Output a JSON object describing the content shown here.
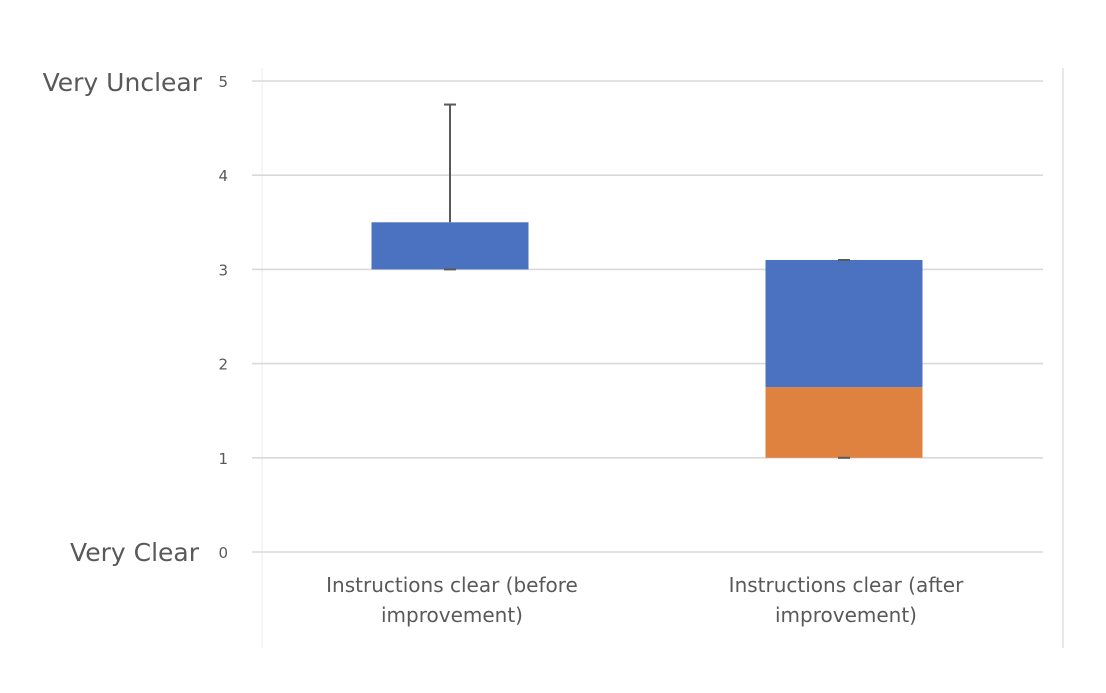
{
  "chart_data": {
    "type": "box",
    "categories": [
      "Instructions clear (before improvement)",
      "Instructions clear (after improvement)"
    ],
    "boxes": [
      {
        "category": "Instructions clear (before improvement)",
        "min": 3,
        "q1": 3,
        "median": 3,
        "q3": 3.5,
        "max": 4.75
      },
      {
        "category": "Instructions clear (after improvement)",
        "min": 1,
        "q1": 1,
        "median": 1.75,
        "q3": 3.1,
        "max": 3.1
      }
    ],
    "ylim": [
      0,
      5
    ],
    "yticks": [
      0,
      1,
      2,
      3,
      4,
      5
    ],
    "scale_labels": {
      "top": "Very Unclear",
      "bottom": "Very Clear"
    },
    "title": "",
    "xlabel": "",
    "ylabel": "",
    "grid": true,
    "colors": {
      "lower_box": "#e0823f",
      "upper_box": "#4a72c0",
      "whisker": "#595959",
      "grid": "#d9d9d9"
    }
  }
}
